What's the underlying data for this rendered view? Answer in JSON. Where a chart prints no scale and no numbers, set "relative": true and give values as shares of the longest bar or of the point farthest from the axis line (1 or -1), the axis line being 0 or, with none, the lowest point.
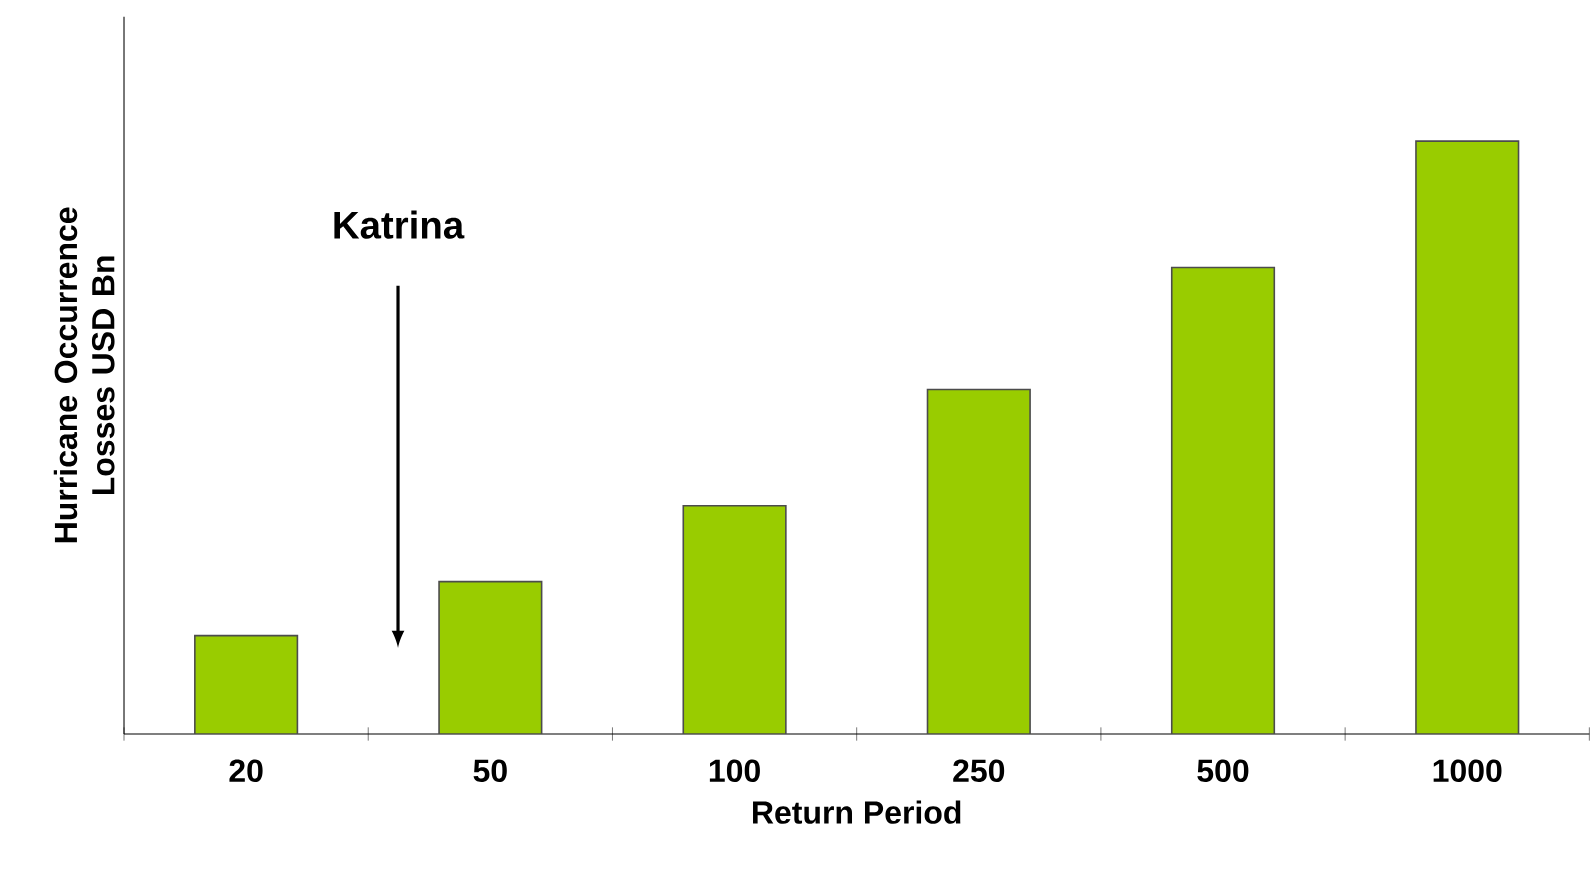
{
  "chart_data": {
    "type": "bar",
    "relative": true,
    "xlabel": "Return Period",
    "ylabel": "Hurricane Occurrence Losses USD Bn",
    "categories": [
      "20",
      "50",
      "100",
      "250",
      "500",
      "1000"
    ],
    "values": [
      0.166,
      0.257,
      0.385,
      0.581,
      0.787,
      1
    ],
    "color": "#99cc00",
    "annotations": [
      "Katrina"
    ]
  }
}
